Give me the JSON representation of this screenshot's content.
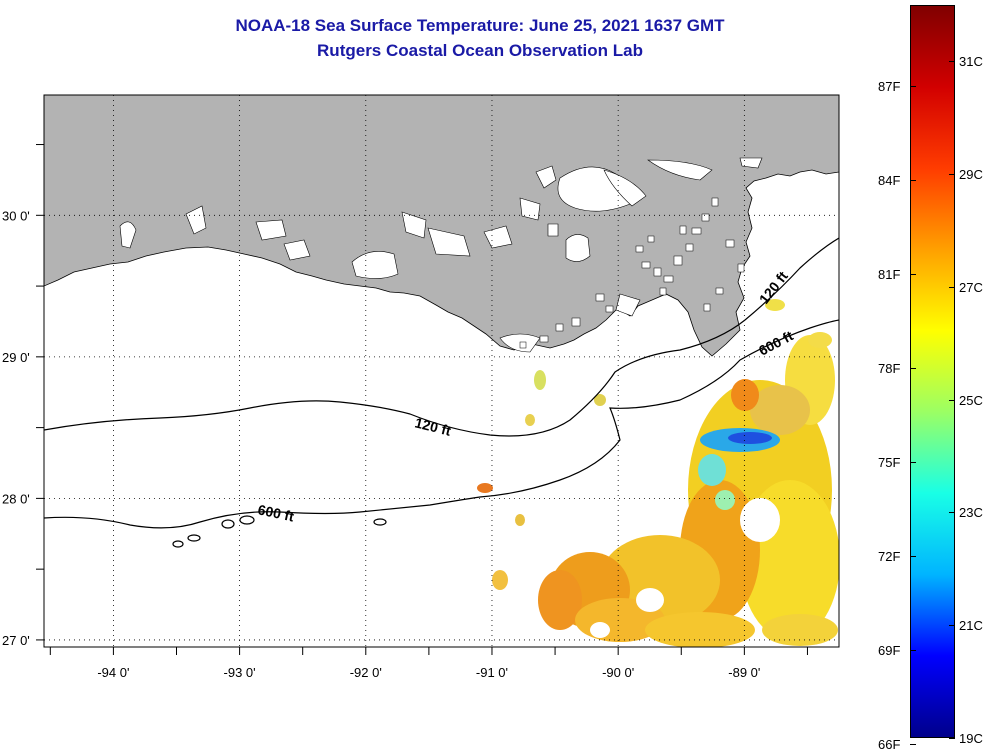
{
  "title": {
    "line1": "NOAA-18 Sea Surface Temperature:  June 25, 2021 1637 GMT",
    "line2": "Rutgers Coastal Ocean Observation Lab"
  },
  "map": {
    "lon_labels": [
      "-94 0'",
      "-93 0'",
      "-92 0'",
      "-91 0'",
      "-90 0'",
      "-89 0'"
    ],
    "lon_values": [
      -94,
      -93,
      -92,
      -91,
      -90,
      -89
    ],
    "lat_labels": [
      "30 0'",
      "29 0'",
      "28 0'",
      "27 0'"
    ],
    "lat_values": [
      30,
      29,
      28,
      27
    ],
    "lon_range": [
      -94.55,
      -88.25
    ],
    "lat_range": [
      26.95,
      30.85
    ],
    "contour_labels": {
      "inner_120_west": "120 ft",
      "inner_120_east": "120 ft",
      "outer_600_west": "600 ft",
      "outer_600_east": "600 ft"
    },
    "colors": {
      "land": "#b3b3b3",
      "grid": "#000000",
      "contour": "#000000"
    }
  },
  "colorbar": {
    "f_labels": [
      "87F",
      "84F",
      "81F",
      "78F",
      "75F",
      "72F",
      "69F",
      "66F"
    ],
    "c_labels": [
      "31C",
      "29C",
      "27C",
      "25C",
      "23C",
      "21C",
      "19C"
    ],
    "c_values": [
      31,
      29,
      27,
      25,
      23,
      21,
      19
    ],
    "range_c": [
      19,
      32
    ],
    "colors": [
      "#00008b",
      "#0000ff",
      "#00b4ff",
      "#19ffe6",
      "#9bff64",
      "#ffff00",
      "#ffa000",
      "#ff3c00",
      "#d20000",
      "#800000"
    ]
  }
}
